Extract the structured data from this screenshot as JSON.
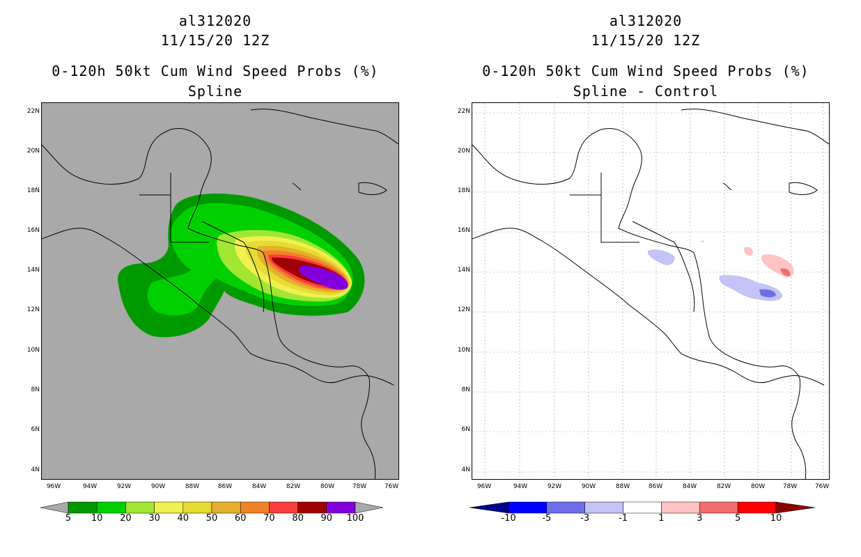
{
  "left_panel": {
    "title_line1": "al312020",
    "title_line2": "11/15/20 12Z",
    "title_line3": "0-120h 50kt Cum Wind Speed Probs (%)",
    "title_line4": "Spline",
    "lat_labels": [
      "22N",
      "20N",
      "18N",
      "16N",
      "14N",
      "12N",
      "10N",
      "8N",
      "6N",
      "4N"
    ],
    "lon_labels": [
      "96W",
      "94W",
      "92W",
      "90W",
      "88W",
      "86W",
      "84W",
      "82W",
      "80W",
      "78W",
      "76W"
    ],
    "colorbar": {
      "labels": [
        "5",
        "10",
        "20",
        "30",
        "40",
        "50",
        "60",
        "70",
        "80",
        "90",
        "100"
      ],
      "colors": [
        "#009a00",
        "#00d000",
        "#a0e632",
        "#f0f050",
        "#e6dc32",
        "#e6af2d",
        "#f08228",
        "#fa3c3c",
        "#a00000",
        "#8200dc"
      ]
    }
  },
  "right_panel": {
    "title_line1": "al312020",
    "title_line2": "11/15/20 12Z",
    "title_line3": "0-120h 50kt Cum Wind Speed Probs (%)",
    "title_line4": "Spline - Control",
    "lat_labels": [
      "22N",
      "20N",
      "18N",
      "16N",
      "14N",
      "12N",
      "10N",
      "8N",
      "6N",
      "4N"
    ],
    "lon_labels": [
      "96W",
      "94W",
      "92W",
      "90W",
      "88W",
      "86W",
      "84W",
      "82W",
      "80W",
      "78W",
      "76W"
    ],
    "colorbar": {
      "labels": [
        "-10",
        "-5",
        "-3",
        "-1",
        "1",
        "3",
        "5",
        "10"
      ],
      "colors": [
        "#0000ff",
        "#6e6eeb",
        "#c3c3f5",
        "#ffffff",
        "#ffc3c3",
        "#f06e6e",
        "#ff0000"
      ],
      "end_low": "#00008b",
      "end_high": "#8b0000"
    }
  }
}
